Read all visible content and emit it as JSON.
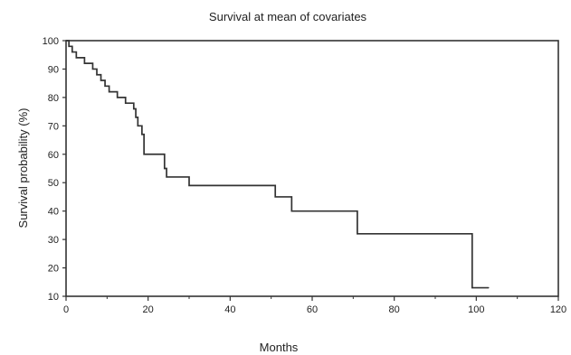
{
  "chart_data": {
    "type": "line",
    "title": "Survival at mean of covariates",
    "xlabel": "Months",
    "ylabel": "Survival probability (%)",
    "xlim": [
      0,
      120
    ],
    "ylim": [
      10,
      100
    ],
    "x_ticks": [
      0,
      20,
      40,
      60,
      80,
      100,
      120
    ],
    "y_ticks": [
      10,
      20,
      30,
      40,
      50,
      60,
      70,
      80,
      90,
      100
    ],
    "grid": false,
    "step": true,
    "line_color": "#333333",
    "series": [
      {
        "x": [
          0,
          0.7,
          1.5,
          2.5,
          4.5,
          6.5,
          7.5,
          8.5,
          9.5,
          10.5,
          12.5,
          14.5,
          16.5,
          17,
          17.5,
          18.5,
          19,
          24,
          24.5,
          30,
          51,
          55,
          71,
          99,
          103
        ],
        "y": [
          100,
          98,
          96,
          94,
          92,
          90,
          88,
          86,
          84,
          82,
          80,
          78,
          76,
          73,
          70,
          67,
          60,
          55,
          52,
          49,
          45,
          40,
          32,
          13,
          13
        ]
      }
    ]
  }
}
